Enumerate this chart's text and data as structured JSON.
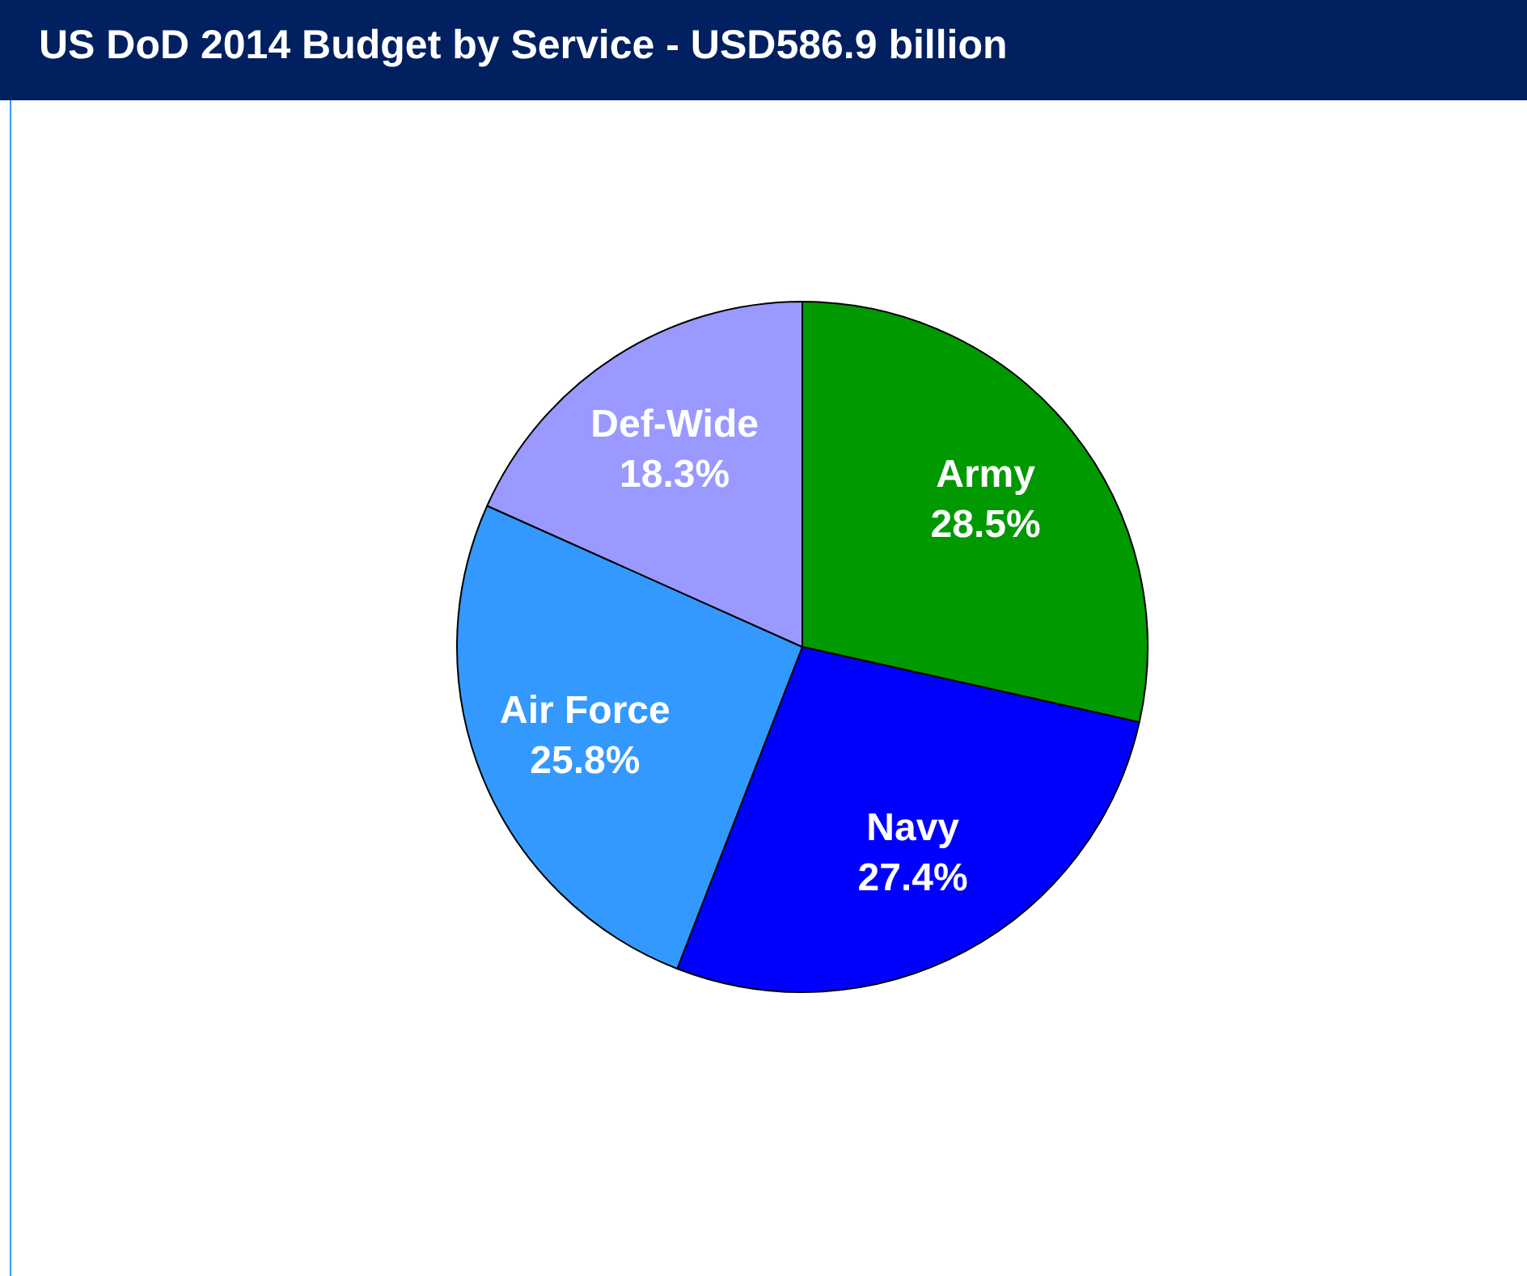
{
  "chart_data": {
    "type": "pie",
    "title": "US DoD 2014 Budget by Service - USD586.9 billion",
    "categories": [
      "Army",
      "Navy",
      "Air Force",
      "Def-Wide"
    ],
    "values": [
      28.5,
      27.4,
      25.8,
      18.3
    ],
    "colors": [
      "#009900",
      "#0000ff",
      "#3399ff",
      "#9999ff"
    ],
    "value_labels": [
      "28.5%",
      "27.4%",
      "25.8%",
      "18.3%"
    ],
    "legend": false
  }
}
